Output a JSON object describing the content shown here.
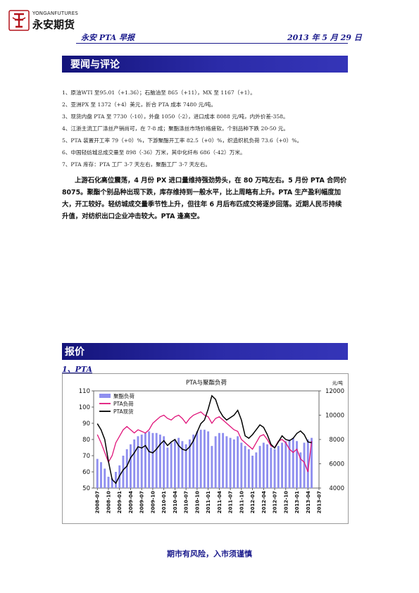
{
  "header": {
    "logo_latin": "YONGANFUTURES",
    "logo_cn": "永安期货",
    "title": "永安 PTA 早报",
    "date": "2013 年 5 月 29 日"
  },
  "sections": {
    "news_heading": "要闻与评论",
    "quote_heading": "报价",
    "pta_subheading": "1、PTA"
  },
  "news_items": [
    "1、原油WTI 至95.01（+1.36）；石脑油至 865（+11），MX 至 1167（+1）。",
    "2、亚洲PX 至 1372（+4）美元，折合 PTA 成本 7480 元/吨。",
    "3、现货内盘 PTA 至 7730（-10），外盘 1050（-2），进口成本 8088 元/吨，内外价差-358。",
    "4、江浙主流工厂涤丝产销尚可，在 7-8 成；聚酯涤丝市场价格疲软，个别品种下跌 20-50 元。",
    "5、PTA 装置开工率 79（+0）%，下游聚酯开工率 82.5（+0）%，织造织机负荷 73.6（+0）%。",
    "6、中国轻纺城总成交量至 898（-36）万米，其中化纤布 686（-42）万米。",
    "7、PTA 库存：PTA 工厂 3-7 天左右，聚酯工厂 3-7 天左右。"
  ],
  "commentary": "上游石化高位震荡，4 月份 PX 进口量维持强劲势头，在 80 万吨左右。5 月份 PTA 合同价 8075。聚酯个别品种出现下跌，库存维持到一般水平，比上周略有上升。PTA 生产盈利幅度加大，开工较好。轻纺城成交量季节性上升，但往年 6 月后布匹成交将逐步回落。近期人民币持续升值，对纺织出口企业冲击较大。PTA 逢高空。",
  "footer": "期市有风险，入市须谨慎",
  "colors": {
    "navy": "#1a1a8c",
    "bars": "#8f8fef",
    "pta_load": "#e0147a",
    "pta_spot": "#000000"
  },
  "chart_data": {
    "type": "bar+line",
    "title": "PTA与聚酯负荷",
    "right_unit": "元/吨",
    "legend": [
      "聚酯负荷",
      "PTA负荷",
      "PTA现货"
    ],
    "legend_position": "top-left",
    "left_axis": {
      "min": 50,
      "max": 110,
      "ticks": [
        50,
        60,
        70,
        80,
        90,
        100,
        110
      ]
    },
    "right_axis": {
      "min": 4000,
      "max": 12000,
      "ticks": [
        4000,
        6000,
        8000,
        10000,
        12000
      ]
    },
    "x_labels": [
      "2008-07",
      "2008-10",
      "2009-01",
      "2009-04",
      "2009-07",
      "2009-10",
      "2010-01",
      "2010-04",
      "2010-07",
      "2010-10",
      "2011-01",
      "2011-04",
      "2011-07",
      "2011-10",
      "2012-01",
      "2012-04",
      "2012-07",
      "2012-10",
      "2013-01",
      "2013-04",
      "2013-07"
    ],
    "x_range": [
      "2008-06",
      "2013-07"
    ],
    "series": [
      {
        "name": "聚酯负荷",
        "axis": "left",
        "style": "bar",
        "values": [
          {
            "x": "2008-07",
            "y": 68
          },
          {
            "x": "2008-08",
            "y": 66
          },
          {
            "x": "2008-09",
            "y": 62
          },
          {
            "x": "2008-10",
            "y": 57
          },
          {
            "x": "2008-11",
            "y": 56
          },
          {
            "x": "2008-12",
            "y": 60
          },
          {
            "x": "2009-01",
            "y": 64
          },
          {
            "x": "2009-02",
            "y": 70
          },
          {
            "x": "2009-03",
            "y": 74
          },
          {
            "x": "2009-04",
            "y": 77
          },
          {
            "x": "2009-05",
            "y": 80
          },
          {
            "x": "2009-06",
            "y": 82
          },
          {
            "x": "2009-07",
            "y": 83
          },
          {
            "x": "2009-08",
            "y": 84
          },
          {
            "x": "2009-09",
            "y": 85
          },
          {
            "x": "2009-10",
            "y": 84
          },
          {
            "x": "2009-11",
            "y": 84
          },
          {
            "x": "2009-12",
            "y": 83
          },
          {
            "x": "2010-01",
            "y": 82
          },
          {
            "x": "2010-02",
            "y": 75
          },
          {
            "x": "2010-03",
            "y": 78
          },
          {
            "x": "2010-04",
            "y": 80
          },
          {
            "x": "2010-05",
            "y": 81
          },
          {
            "x": "2010-06",
            "y": 79
          },
          {
            "x": "2010-07",
            "y": 77
          },
          {
            "x": "2010-08",
            "y": 80
          },
          {
            "x": "2010-09",
            "y": 83
          },
          {
            "x": "2010-10",
            "y": 85
          },
          {
            "x": "2010-11",
            "y": 86
          },
          {
            "x": "2010-12",
            "y": 86
          },
          {
            "x": "2011-01",
            "y": 85
          },
          {
            "x": "2011-02",
            "y": 76
          },
          {
            "x": "2011-03",
            "y": 82
          },
          {
            "x": "2011-04",
            "y": 84
          },
          {
            "x": "2011-05",
            "y": 84
          },
          {
            "x": "2011-06",
            "y": 82
          },
          {
            "x": "2011-07",
            "y": 81
          },
          {
            "x": "2011-08",
            "y": 80
          },
          {
            "x": "2011-09",
            "y": 82
          },
          {
            "x": "2011-10",
            "y": 78
          },
          {
            "x": "2011-11",
            "y": 76
          },
          {
            "x": "2011-12",
            "y": 74
          },
          {
            "x": "2012-01",
            "y": 70
          },
          {
            "x": "2012-02",
            "y": 72
          },
          {
            "x": "2012-03",
            "y": 76
          },
          {
            "x": "2012-04",
            "y": 78
          },
          {
            "x": "2012-05",
            "y": 77
          },
          {
            "x": "2012-06",
            "y": 75
          },
          {
            "x": "2012-07",
            "y": 74
          },
          {
            "x": "2012-08",
            "y": 76
          },
          {
            "x": "2012-09",
            "y": 78
          },
          {
            "x": "2012-10",
            "y": 79
          },
          {
            "x": "2012-11",
            "y": 80
          },
          {
            "x": "2012-12",
            "y": 81
          },
          {
            "x": "2013-01",
            "y": 79
          },
          {
            "x": "2013-02",
            "y": 72
          },
          {
            "x": "2013-03",
            "y": 78
          },
          {
            "x": "2013-04",
            "y": 80
          },
          {
            "x": "2013-05",
            "y": 81
          }
        ]
      },
      {
        "name": "PTA负荷",
        "axis": "left",
        "style": "line",
        "values": [
          {
            "x": "2008-07",
            "y": 83
          },
          {
            "x": "2008-08",
            "y": 78
          },
          {
            "x": "2008-09",
            "y": 72
          },
          {
            "x": "2008-10",
            "y": 66
          },
          {
            "x": "2008-11",
            "y": 70
          },
          {
            "x": "2008-12",
            "y": 78
          },
          {
            "x": "2009-01",
            "y": 82
          },
          {
            "x": "2009-02",
            "y": 86
          },
          {
            "x": "2009-03",
            "y": 88
          },
          {
            "x": "2009-04",
            "y": 86
          },
          {
            "x": "2009-05",
            "y": 84
          },
          {
            "x": "2009-06",
            "y": 86
          },
          {
            "x": "2009-07",
            "y": 85
          },
          {
            "x": "2009-08",
            "y": 84
          },
          {
            "x": "2009-09",
            "y": 86
          },
          {
            "x": "2009-10",
            "y": 90
          },
          {
            "x": "2009-11",
            "y": 92
          },
          {
            "x": "2009-12",
            "y": 94
          },
          {
            "x": "2010-01",
            "y": 95
          },
          {
            "x": "2010-02",
            "y": 93
          },
          {
            "x": "2010-03",
            "y": 92
          },
          {
            "x": "2010-04",
            "y": 94
          },
          {
            "x": "2010-05",
            "y": 95
          },
          {
            "x": "2010-06",
            "y": 93
          },
          {
            "x": "2010-07",
            "y": 90
          },
          {
            "x": "2010-08",
            "y": 93
          },
          {
            "x": "2010-09",
            "y": 95
          },
          {
            "x": "2010-10",
            "y": 96
          },
          {
            "x": "2010-11",
            "y": 97
          },
          {
            "x": "2010-12",
            "y": 95
          },
          {
            "x": "2011-01",
            "y": 94
          },
          {
            "x": "2011-02",
            "y": 90
          },
          {
            "x": "2011-03",
            "y": 93
          },
          {
            "x": "2011-04",
            "y": 94
          },
          {
            "x": "2011-05",
            "y": 92
          },
          {
            "x": "2011-06",
            "y": 90
          },
          {
            "x": "2011-07",
            "y": 88
          },
          {
            "x": "2011-08",
            "y": 86
          },
          {
            "x": "2011-09",
            "y": 85
          },
          {
            "x": "2011-10",
            "y": 80
          },
          {
            "x": "2011-11",
            "y": 78
          },
          {
            "x": "2011-12",
            "y": 76
          },
          {
            "x": "2012-01",
            "y": 74
          },
          {
            "x": "2012-02",
            "y": 78
          },
          {
            "x": "2012-03",
            "y": 82
          },
          {
            "x": "2012-04",
            "y": 83
          },
          {
            "x": "2012-05",
            "y": 80
          },
          {
            "x": "2012-06",
            "y": 76
          },
          {
            "x": "2012-07",
            "y": 75
          },
          {
            "x": "2012-08",
            "y": 79
          },
          {
            "x": "2012-09",
            "y": 80
          },
          {
            "x": "2012-10",
            "y": 78
          },
          {
            "x": "2012-11",
            "y": 74
          },
          {
            "x": "2012-12",
            "y": 72
          },
          {
            "x": "2013-01",
            "y": 74
          },
          {
            "x": "2013-02",
            "y": 68
          },
          {
            "x": "2013-03",
            "y": 66
          },
          {
            "x": "2013-04",
            "y": 60
          },
          {
            "x": "2013-05",
            "y": 79
          }
        ]
      },
      {
        "name": "PTA现货",
        "axis": "right",
        "style": "line",
        "values": [
          {
            "x": "2008-07",
            "y": 9300
          },
          {
            "x": "2008-08",
            "y": 8800
          },
          {
            "x": "2008-09",
            "y": 8000
          },
          {
            "x": "2008-10",
            "y": 6200
          },
          {
            "x": "2008-11",
            "y": 4700
          },
          {
            "x": "2008-12",
            "y": 4400
          },
          {
            "x": "2009-01",
            "y": 5000
          },
          {
            "x": "2009-02",
            "y": 5500
          },
          {
            "x": "2009-03",
            "y": 5800
          },
          {
            "x": "2009-04",
            "y": 6500
          },
          {
            "x": "2009-05",
            "y": 6900
          },
          {
            "x": "2009-06",
            "y": 7400
          },
          {
            "x": "2009-07",
            "y": 7300
          },
          {
            "x": "2009-08",
            "y": 7500
          },
          {
            "x": "2009-09",
            "y": 7000
          },
          {
            "x": "2009-10",
            "y": 6900
          },
          {
            "x": "2009-11",
            "y": 7200
          },
          {
            "x": "2009-12",
            "y": 7600
          },
          {
            "x": "2010-01",
            "y": 7900
          },
          {
            "x": "2010-02",
            "y": 7500
          },
          {
            "x": "2010-03",
            "y": 7800
          },
          {
            "x": "2010-04",
            "y": 8000
          },
          {
            "x": "2010-05",
            "y": 7500
          },
          {
            "x": "2010-06",
            "y": 7200
          },
          {
            "x": "2010-07",
            "y": 7100
          },
          {
            "x": "2010-08",
            "y": 7400
          },
          {
            "x": "2010-09",
            "y": 7900
          },
          {
            "x": "2010-10",
            "y": 8600
          },
          {
            "x": "2010-11",
            "y": 9300
          },
          {
            "x": "2010-12",
            "y": 9600
          },
          {
            "x": "2011-01",
            "y": 10500
          },
          {
            "x": "2011-02",
            "y": 11600
          },
          {
            "x": "2011-03",
            "y": 11300
          },
          {
            "x": "2011-04",
            "y": 10400
          },
          {
            "x": "2011-05",
            "y": 9900
          },
          {
            "x": "2011-06",
            "y": 9600
          },
          {
            "x": "2011-07",
            "y": 9800
          },
          {
            "x": "2011-08",
            "y": 10000
          },
          {
            "x": "2011-09",
            "y": 10400
          },
          {
            "x": "2011-10",
            "y": 9600
          },
          {
            "x": "2011-11",
            "y": 8300
          },
          {
            "x": "2011-12",
            "y": 8100
          },
          {
            "x": "2012-01",
            "y": 8400
          },
          {
            "x": "2012-02",
            "y": 8800
          },
          {
            "x": "2012-03",
            "y": 9200
          },
          {
            "x": "2012-04",
            "y": 9000
          },
          {
            "x": "2012-05",
            "y": 8400
          },
          {
            "x": "2012-06",
            "y": 7600
          },
          {
            "x": "2012-07",
            "y": 7300
          },
          {
            "x": "2012-08",
            "y": 7800
          },
          {
            "x": "2012-09",
            "y": 8300
          },
          {
            "x": "2012-10",
            "y": 8000
          },
          {
            "x": "2012-11",
            "y": 7900
          },
          {
            "x": "2012-12",
            "y": 8100
          },
          {
            "x": "2013-01",
            "y": 8500
          },
          {
            "x": "2013-02",
            "y": 8700
          },
          {
            "x": "2013-03",
            "y": 8400
          },
          {
            "x": "2013-04",
            "y": 7800
          },
          {
            "x": "2013-05",
            "y": 7730
          }
        ]
      }
    ]
  }
}
